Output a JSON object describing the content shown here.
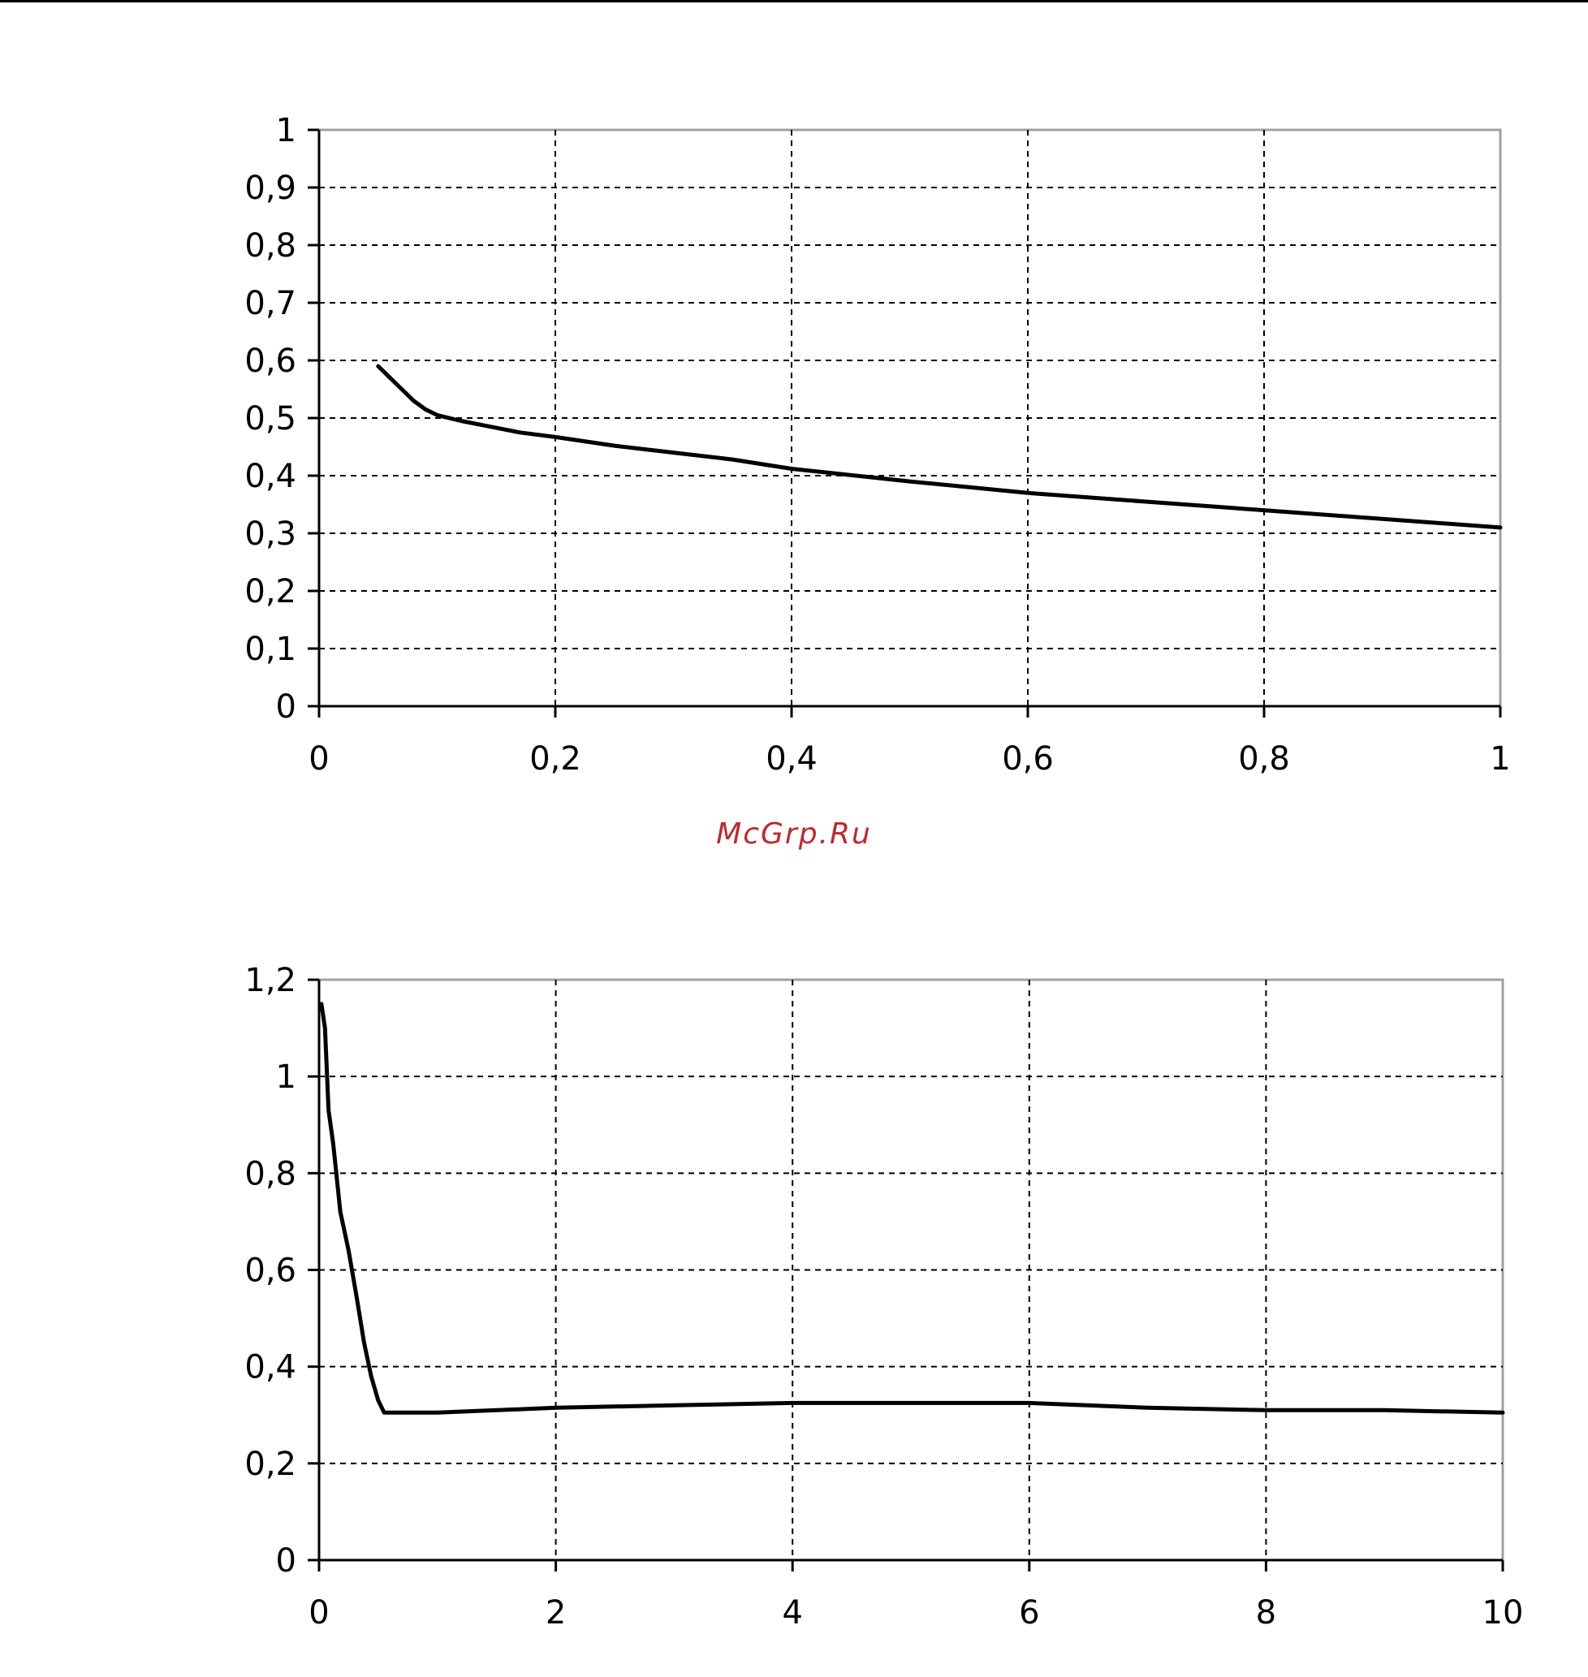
{
  "watermark": "McGrp.Ru",
  "colors": {
    "line": "#000000",
    "grid": "#000000",
    "frame": "#a0a0a0",
    "watermark": "#c0282d"
  },
  "chart_data": [
    {
      "type": "line",
      "title": "",
      "xlabel": "",
      "ylabel": "",
      "xlim": [
        0,
        1
      ],
      "ylim": [
        0,
        1
      ],
      "grid": true,
      "legend": "none",
      "x_ticks": [
        "0",
        "0,2",
        "0,4",
        "0,6",
        "0,8",
        "1"
      ],
      "y_ticks": [
        "0",
        "0,1",
        "0,2",
        "0,3",
        "0,4",
        "0,5",
        "0,6",
        "0,7",
        "0,8",
        "0,9",
        "1"
      ],
      "series": [
        {
          "x": [
            0.05,
            0.06,
            0.07,
            0.08,
            0.09,
            0.1,
            0.12,
            0.14,
            0.17,
            0.2,
            0.25,
            0.3,
            0.35,
            0.4,
            0.5,
            0.6,
            0.7,
            0.8,
            0.9,
            1.0
          ],
          "y": [
            0.59,
            0.57,
            0.55,
            0.53,
            0.515,
            0.505,
            0.495,
            0.487,
            0.475,
            0.467,
            0.452,
            0.44,
            0.428,
            0.412,
            0.39,
            0.37,
            0.355,
            0.34,
            0.325,
            0.31
          ]
        }
      ]
    },
    {
      "type": "line",
      "title": "",
      "xlabel": "",
      "ylabel": "",
      "xlim": [
        0,
        10
      ],
      "ylim": [
        0,
        1.2
      ],
      "grid": true,
      "legend": "none",
      "x_ticks": [
        "0",
        "2",
        "4",
        "6",
        "8",
        "10"
      ],
      "y_ticks": [
        "0",
        "0,2",
        "0,4",
        "0,6",
        "0,8",
        "1",
        "1,2"
      ],
      "series": [
        {
          "x": [
            0.02,
            0.05,
            0.08,
            0.12,
            0.18,
            0.25,
            0.32,
            0.38,
            0.44,
            0.5,
            0.55,
            1.0,
            2.0,
            3.0,
            4.0,
            5.0,
            6.0,
            7.0,
            8.0,
            9.0,
            10.0
          ],
          "y": [
            1.15,
            1.1,
            0.93,
            0.86,
            0.72,
            0.64,
            0.54,
            0.45,
            0.38,
            0.33,
            0.305,
            0.305,
            0.315,
            0.32,
            0.325,
            0.325,
            0.325,
            0.315,
            0.31,
            0.31,
            0.305
          ]
        }
      ]
    }
  ]
}
